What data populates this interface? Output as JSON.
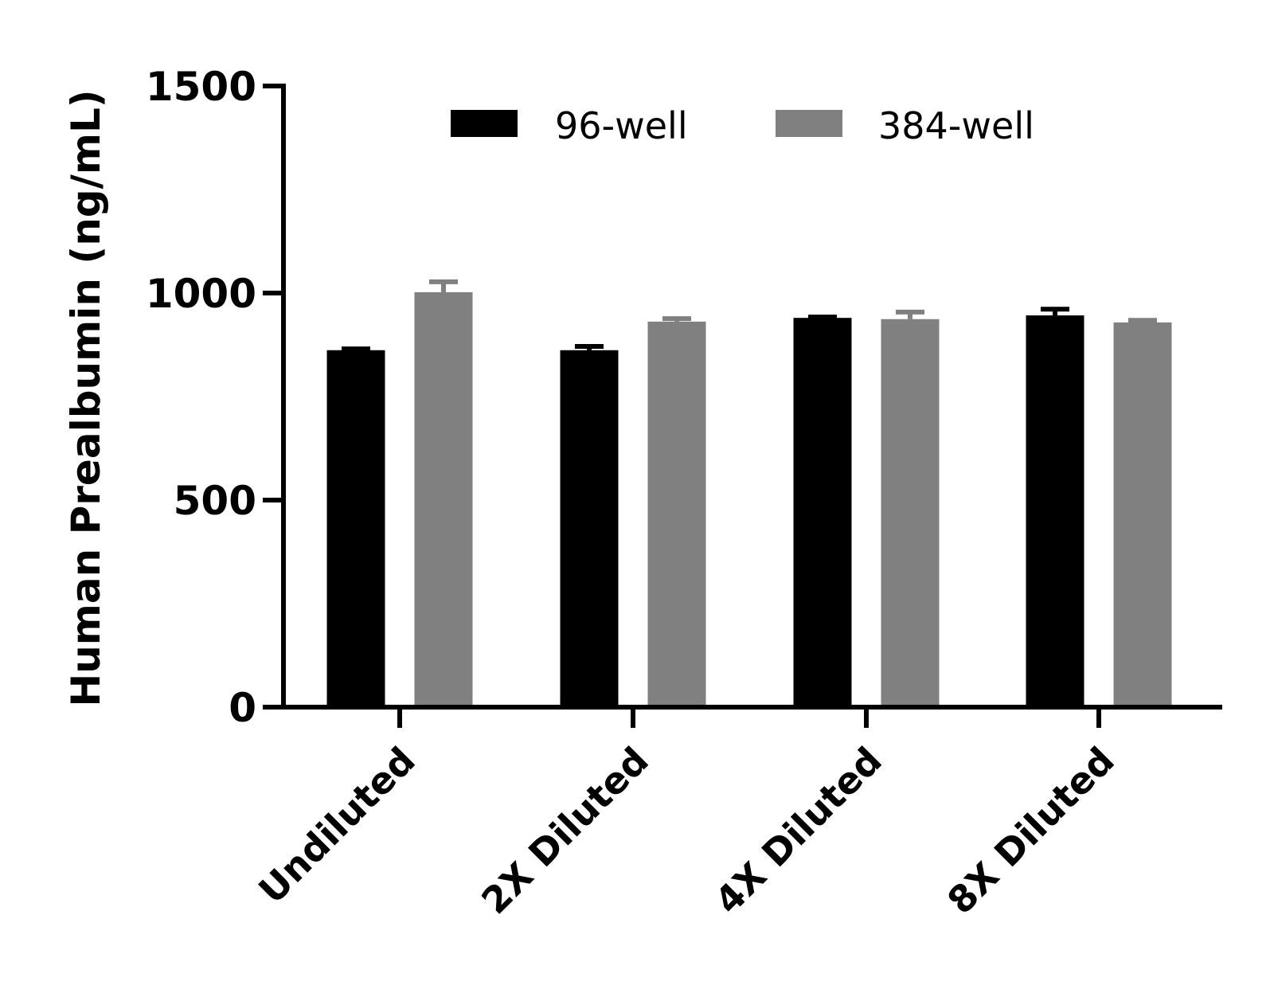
{
  "chart_data": {
    "type": "bar",
    "title": "",
    "xlabel": "",
    "ylabel": "Human Prealbumin (ng/mL)",
    "ylim": [
      0,
      1500
    ],
    "yticks": [
      0,
      500,
      1000,
      1500
    ],
    "ytick_labels": [
      "0",
      "500",
      "1000",
      "1500"
    ],
    "grid": false,
    "legend_position": "top",
    "categories": [
      "Undiluted",
      "2X Diluted",
      "4X Diluted",
      "8X Diluted"
    ],
    "series": [
      {
        "name": "96-well",
        "color": "#000000",
        "values": [
          862,
          862,
          940,
          946
        ],
        "error_upper": [
          869,
          875,
          946,
          965
        ]
      },
      {
        "name": "384-well",
        "color": "#808080",
        "values": [
          1002,
          931,
          937,
          929
        ],
        "error_upper": [
          1031,
          942,
          958,
          938
        ]
      }
    ]
  }
}
